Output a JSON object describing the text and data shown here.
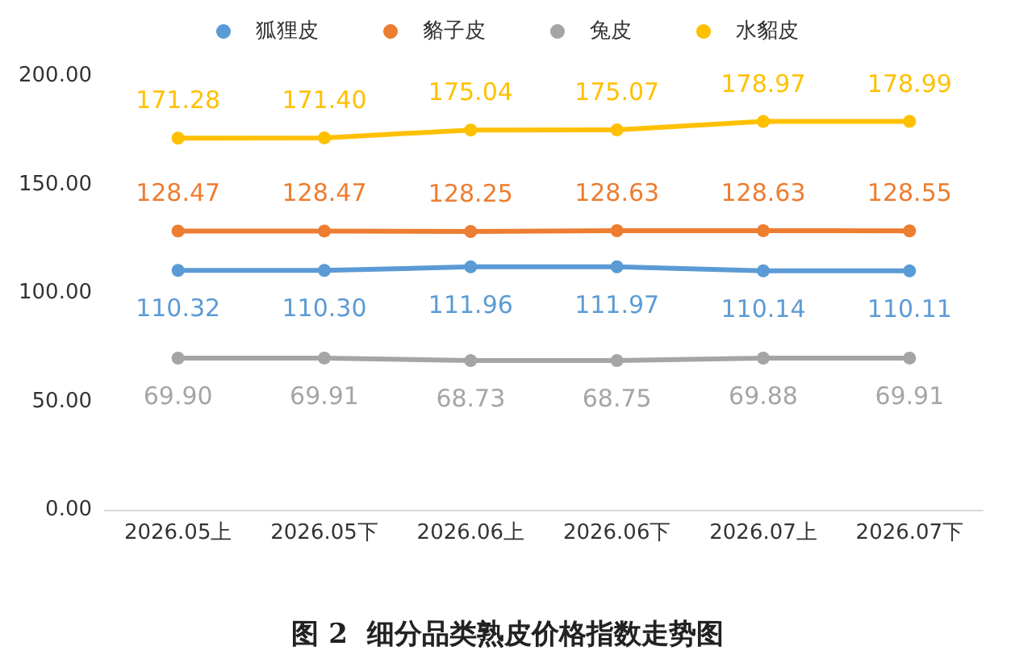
{
  "chart_data": {
    "type": "line",
    "title": "图 2  细分品类熟皮价格指数走势图",
    "categories": [
      "2026.05上",
      "2026.05下",
      "2026.06上",
      "2026.06下",
      "2026.07上",
      "2026.07下"
    ],
    "series": [
      {
        "name": "狐狸皮",
        "color": "#5b9bd5",
        "values": [
          110.32,
          110.3,
          111.96,
          111.97,
          110.14,
          110.11
        ],
        "value_labels": [
          "110.32",
          "110.30",
          "111.96",
          "111.97",
          "110.14",
          "110.11"
        ]
      },
      {
        "name": "貉子皮",
        "color": "#ed7d31",
        "values": [
          128.47,
          128.47,
          128.25,
          128.63,
          128.63,
          128.55
        ],
        "value_labels": [
          "128.47",
          "128.47",
          "128.25",
          "128.63",
          "128.63",
          "128.55"
        ]
      },
      {
        "name": "兔皮",
        "color": "#a5a5a5",
        "values": [
          69.9,
          69.91,
          68.73,
          68.75,
          69.88,
          69.91
        ],
        "value_labels": [
          "69.90",
          "69.91",
          "68.73",
          "68.75",
          "69.88",
          "69.91"
        ]
      },
      {
        "name": "水貂皮",
        "color": "#ffc000",
        "values": [
          171.28,
          171.4,
          175.04,
          175.07,
          178.97,
          178.99
        ],
        "value_labels": [
          "171.28",
          "171.40",
          "175.04",
          "175.07",
          "178.97",
          "178.99"
        ]
      }
    ],
    "ylim": [
      0,
      200
    ],
    "yticks": [
      {
        "value": 0,
        "label": "0.00"
      },
      {
        "value": 50,
        "label": "50.00"
      },
      {
        "value": 100,
        "label": "100.00"
      },
      {
        "value": 150,
        "label": "150.00"
      },
      {
        "value": 200,
        "label": "200.00"
      }
    ],
    "grid": false,
    "legend": "top",
    "marker": "circle",
    "line_style": "solid"
  }
}
